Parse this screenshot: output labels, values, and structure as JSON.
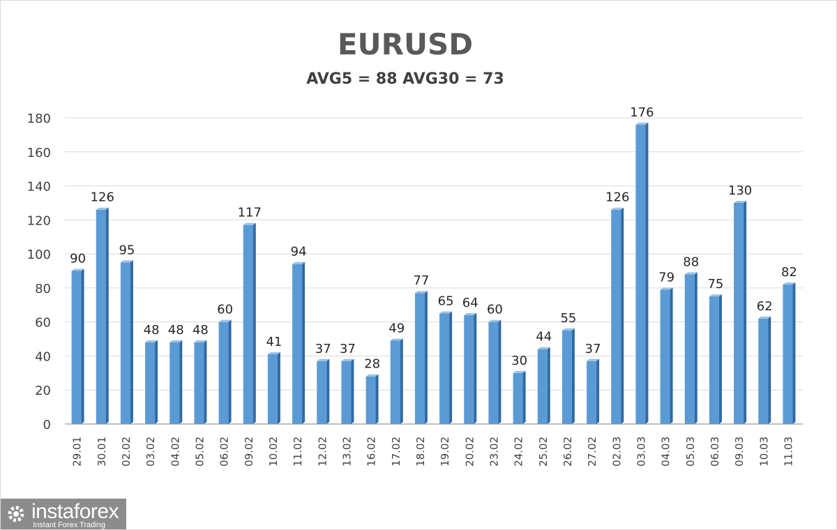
{
  "chart_data": {
    "type": "bar",
    "title": "EURUSD",
    "subtitle": "AVG5 = 88 AVG30 = 73",
    "categories": [
      "29.01",
      "30.01",
      "02.02",
      "03.02",
      "04.02",
      "05.02",
      "06.02",
      "09.02",
      "10.02",
      "11.02",
      "12.02",
      "13.02",
      "16.02",
      "17.02",
      "18.02",
      "19.02",
      "20.02",
      "23.02",
      "24.02",
      "25.02",
      "26.02",
      "27.02",
      "02.03",
      "03.03",
      "04.03",
      "05.03",
      "06.03",
      "09.03",
      "10.03",
      "11.03"
    ],
    "values": [
      90,
      126,
      95,
      48,
      48,
      48,
      60,
      117,
      41,
      94,
      37,
      37,
      28,
      49,
      77,
      65,
      64,
      60,
      30,
      44,
      55,
      37,
      126,
      176,
      79,
      88,
      75,
      130,
      62,
      82
    ],
    "ylim": [
      0,
      180
    ],
    "yticks": [
      0,
      20,
      40,
      60,
      80,
      100,
      120,
      140,
      160,
      180
    ],
    "grid": true,
    "bar_color": "#5b9bd5",
    "data_labels": true
  },
  "logo": {
    "name": "instaforex",
    "tagline": "Instant Forex Trading"
  }
}
